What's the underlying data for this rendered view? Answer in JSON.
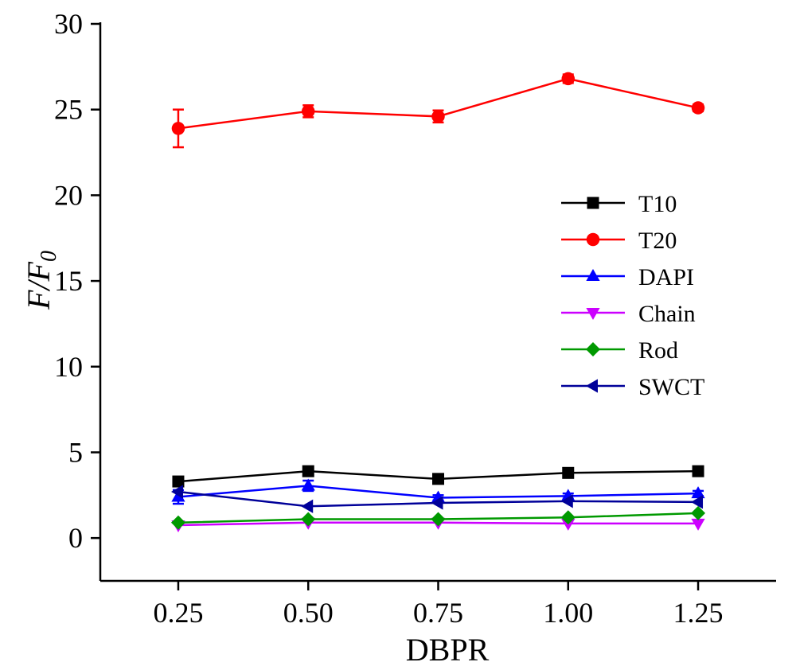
{
  "chart_data": {
    "type": "line",
    "title": "",
    "xlabel": "DBPR",
    "ylabel": "F/F0",
    "ylabel_main": "F/F",
    "ylabel_sub": "0",
    "x": [
      0.25,
      0.5,
      0.75,
      1.0,
      1.25
    ],
    "x_tick_labels": [
      "0.25",
      "0.50",
      "0.75",
      "1.00",
      "1.25"
    ],
    "xlim": [
      0.1,
      1.4
    ],
    "ylim": [
      -2.5,
      30
    ],
    "y_ticks": [
      0,
      5,
      10,
      15,
      20,
      25,
      30
    ],
    "y_tick_labels": [
      "0",
      "5",
      "10",
      "15",
      "20",
      "25",
      "30"
    ],
    "grid": false,
    "legend_position": "right",
    "series": [
      {
        "name": "T10",
        "color": "#000000",
        "marker": "square",
        "values": [
          3.3,
          3.9,
          3.45,
          3.8,
          3.9
        ]
      },
      {
        "name": "T20",
        "color": "#ff0000",
        "marker": "circle",
        "values": [
          23.9,
          24.9,
          24.6,
          26.8,
          25.1
        ],
        "errors": [
          1.1,
          0.35,
          0.35,
          0.25,
          0.2
        ]
      },
      {
        "name": "DAPI",
        "color": "#0000ff",
        "marker": "triangle-up",
        "values": [
          2.4,
          3.05,
          2.35,
          2.45,
          2.6
        ],
        "errors": [
          0.4,
          0.3,
          0.15,
          0.15,
          0.15
        ]
      },
      {
        "name": "Chain",
        "color": "#cc00ff",
        "marker": "triangle-down",
        "values": [
          0.75,
          0.9,
          0.9,
          0.85,
          0.85
        ]
      },
      {
        "name": "Rod",
        "color": "#009900",
        "marker": "diamond",
        "values": [
          0.9,
          1.1,
          1.1,
          1.2,
          1.45
        ]
      },
      {
        "name": "SWCT",
        "color": "#000099",
        "marker": "triangle-left",
        "values": [
          2.7,
          1.85,
          2.05,
          2.15,
          2.1
        ]
      }
    ]
  }
}
